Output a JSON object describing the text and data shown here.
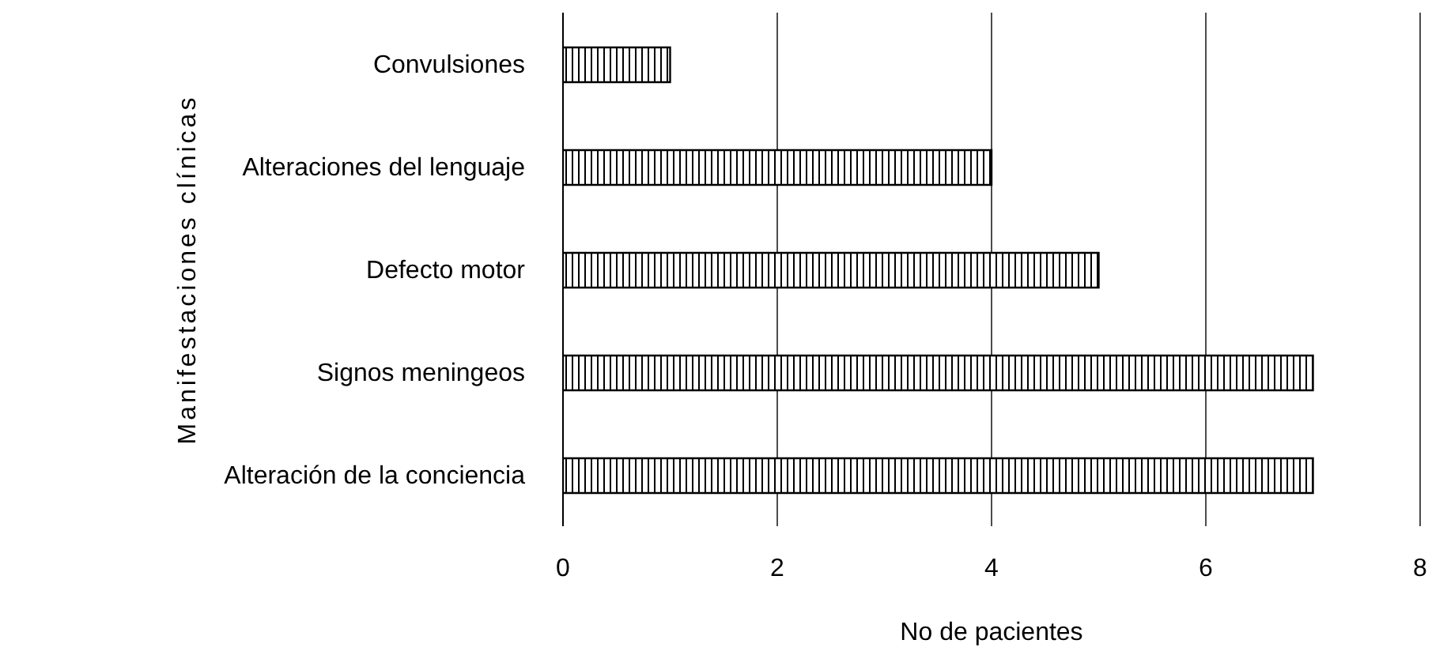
{
  "chart_data": {
    "type": "bar",
    "orientation": "horizontal",
    "xlabel": "No de pacientes",
    "ylabel": "Manifestaciones clínicas",
    "categories": [
      "Convulsiones",
      "Alteraciones del lenguaje",
      "Defecto motor",
      "Signos meningeos",
      "Alteración de la conciencia"
    ],
    "values": [
      1,
      4,
      5,
      7,
      7
    ],
    "color": "#000000",
    "xlim": [
      0,
      8
    ],
    "xticks": [
      0,
      2,
      4,
      6,
      8
    ],
    "grid": "x"
  }
}
